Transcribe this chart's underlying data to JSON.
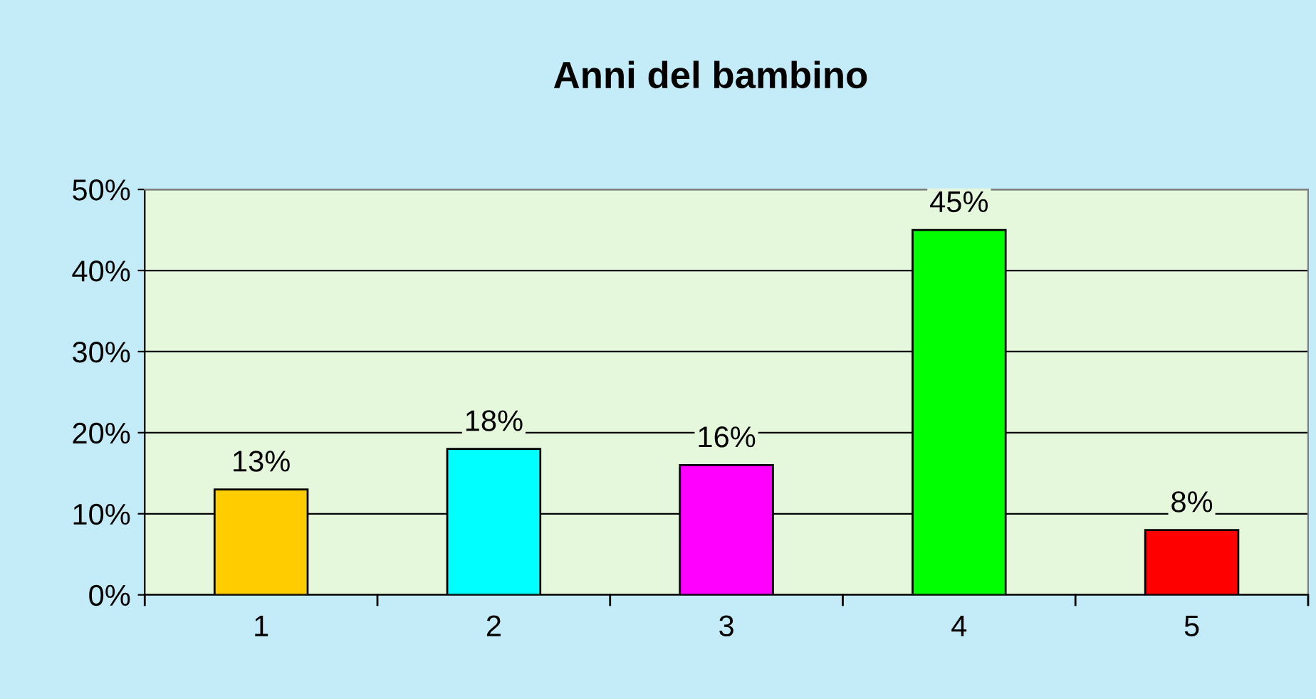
{
  "chart_data": {
    "type": "bar",
    "title": "Anni del bambino",
    "categories": [
      "1",
      "2",
      "3",
      "4",
      "5"
    ],
    "values": [
      13,
      18,
      16,
      45,
      8
    ],
    "colors": [
      "#ffcc00",
      "#00ffff",
      "#ff00ff",
      "#00ff00",
      "#ff0000"
    ],
    "value_labels": [
      "13%",
      "18%",
      "16%",
      "45%",
      "8%"
    ],
    "ylim": [
      0,
      50
    ],
    "yticks": [
      {
        "value": 0,
        "label": "0%"
      },
      {
        "value": 10,
        "label": "10%"
      },
      {
        "value": 20,
        "label": "20%"
      },
      {
        "value": 30,
        "label": "30%"
      },
      {
        "value": 40,
        "label": "40%"
      },
      {
        "value": 50,
        "label": "50%"
      }
    ],
    "grid": "y",
    "legend": false
  }
}
